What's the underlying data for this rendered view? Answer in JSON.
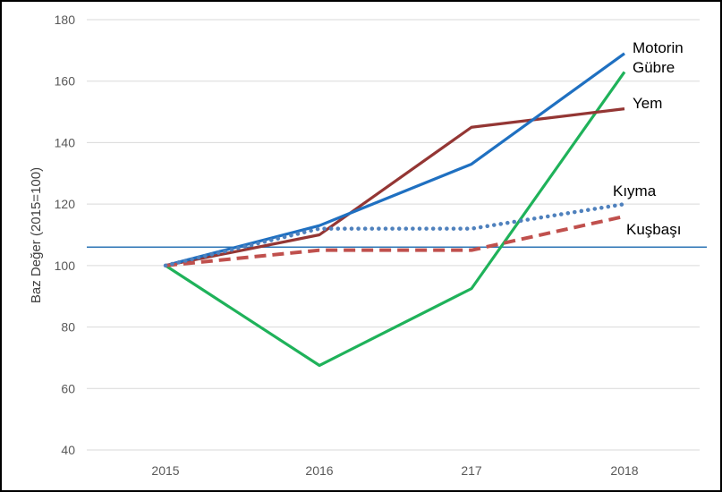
{
  "chart_data": {
    "type": "line",
    "title": "",
    "xlabel": "",
    "ylabel": "Baz Değer (2015=100)",
    "categories": [
      "2015",
      "2016",
      "217",
      "2018"
    ],
    "ylim": [
      40,
      180
    ],
    "yticks": [
      40,
      60,
      80,
      100,
      120,
      140,
      160,
      180
    ],
    "grid": true,
    "legend": "end-of-line labels",
    "reference_line": {
      "y": 106,
      "color": "#2e75b6"
    },
    "series": [
      {
        "name": "Motorin",
        "values": [
          100,
          113,
          133,
          169
        ],
        "color": "#1f70c1",
        "style": "solid"
      },
      {
        "name": "Gübre",
        "values": [
          100,
          67.5,
          92.5,
          163
        ],
        "color": "#1fb25a",
        "style": "solid"
      },
      {
        "name": "Yem",
        "values": [
          100,
          110,
          145,
          151
        ],
        "color": "#943634",
        "style": "solid"
      },
      {
        "name": "Kıyma",
        "values": [
          100,
          112,
          112,
          120
        ],
        "color": "#4f81bd",
        "style": "dotted"
      },
      {
        "name": "Kuşbaşı",
        "values": [
          100,
          105,
          105,
          116
        ],
        "color": "#c0504d",
        "style": "dashed"
      }
    ]
  }
}
